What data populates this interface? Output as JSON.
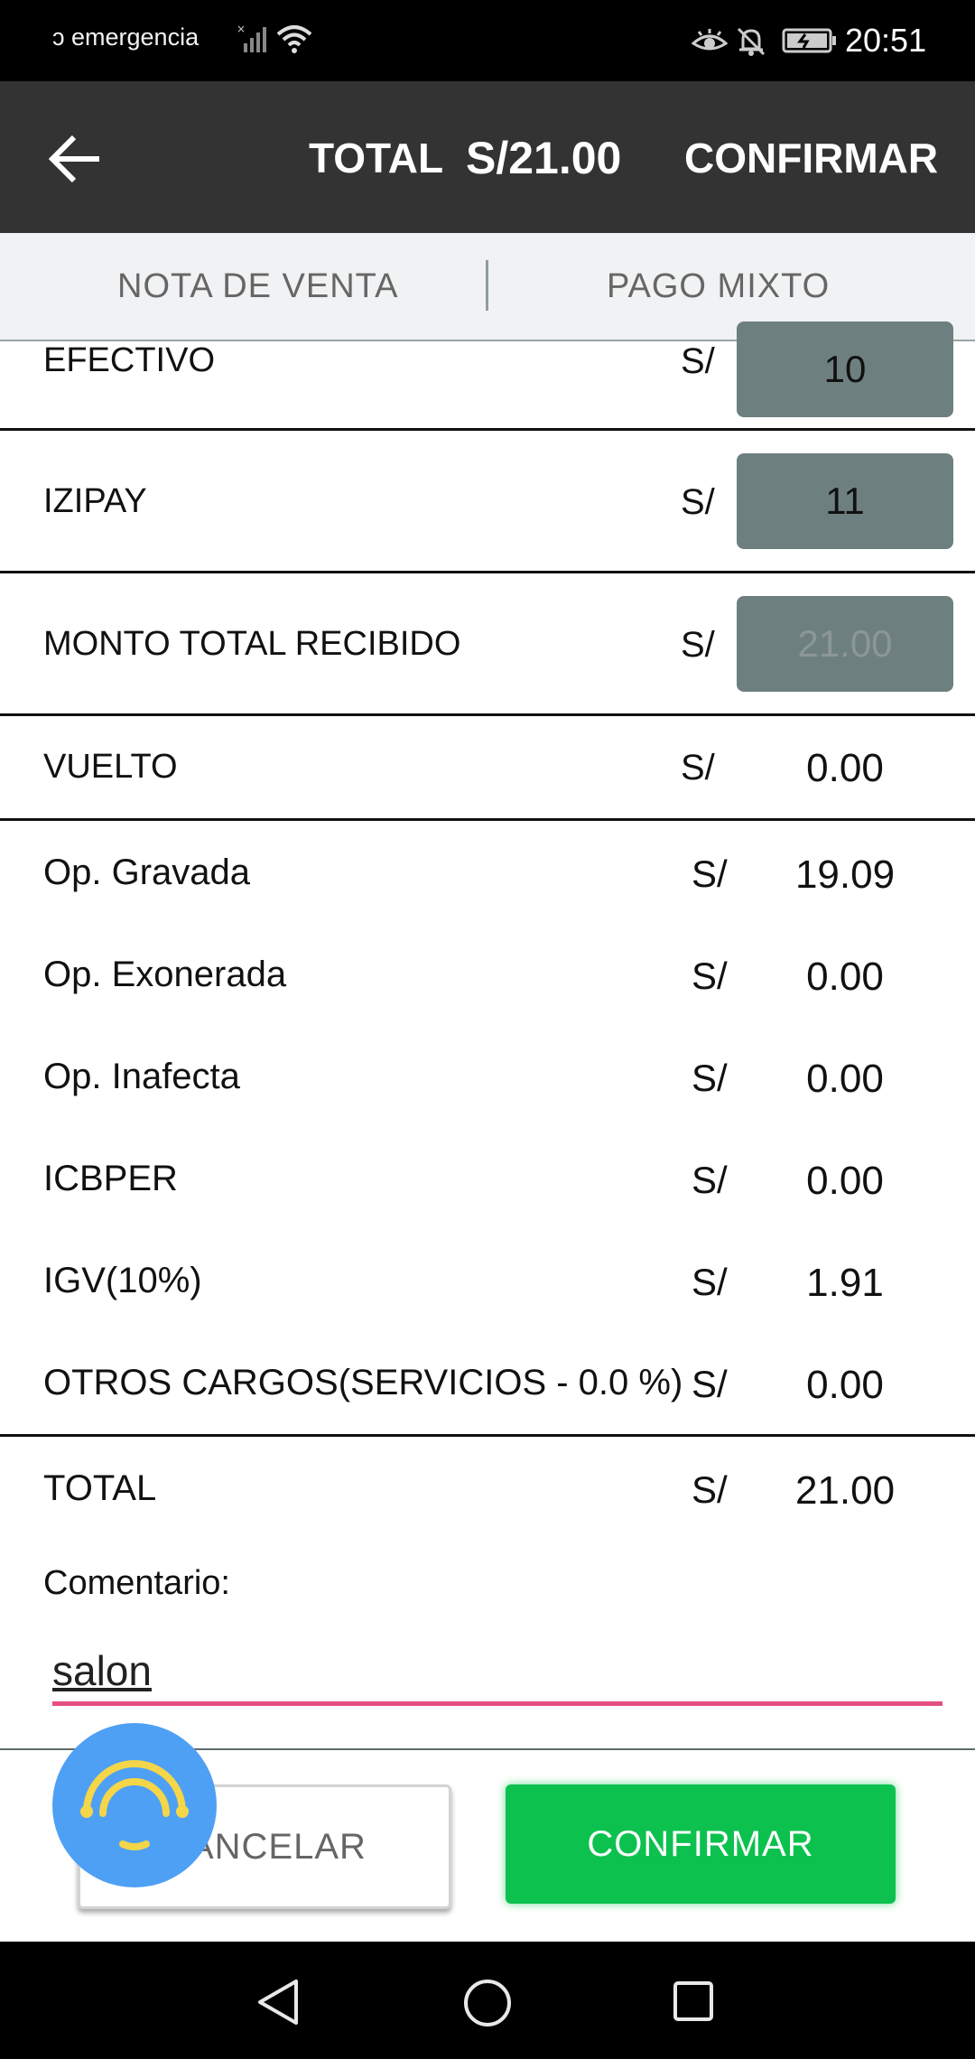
{
  "status_bar": {
    "carrier_text": "ɔ emergencia",
    "time": "20:51"
  },
  "app_bar": {
    "total_label": "TOTAL",
    "total_value": "S/21.00",
    "confirm_label": "CONFIRMAR"
  },
  "tabs": [
    {
      "label": "NOTA DE VENTA"
    },
    {
      "label": "PAGO MIXTO"
    }
  ],
  "payments": [
    {
      "label": "EFECTIVO",
      "currency": "S/",
      "value": "10"
    },
    {
      "label": "IZIPAY",
      "currency": "S/",
      "value": "11"
    },
    {
      "label": "MONTO TOTAL RECIBIDO",
      "currency": "S/",
      "value": "21.00"
    }
  ],
  "change": {
    "label": "VUELTO",
    "currency": "S/",
    "value": "0.00"
  },
  "summary": [
    {
      "label": "Op. Gravada",
      "currency": "S/",
      "value": "19.09"
    },
    {
      "label": "Op. Exonerada",
      "currency": "S/",
      "value": "0.00"
    },
    {
      "label": "Op. Inafecta",
      "currency": "S/",
      "value": "0.00"
    },
    {
      "label": "ICBPER",
      "currency": "S/",
      "value": "0.00"
    },
    {
      "label": "IGV(10%)",
      "currency": "S/",
      "value": "1.91"
    },
    {
      "label": "OTROS CARGOS(SERVICIOS - 0.0 %)",
      "currency": "S/",
      "value": "0.00"
    }
  ],
  "total": {
    "label": "TOTAL",
    "currency": "S/",
    "value": "21.00"
  },
  "comment": {
    "label": "Comentario:",
    "value": "salon"
  },
  "buttons": {
    "cancel_label": "CANCELAR",
    "confirm_label": "CONFIRMAR"
  },
  "colors": {
    "app_bar": "#333333",
    "confirm_green": "#0cc14e",
    "input_accent": "#e6507f",
    "amount_box": "#6e7f80",
    "fab_blue": "#4ea0f5"
  },
  "icons": [
    "back-arrow-icon",
    "eye-comfort-icon",
    "bell-off-icon",
    "battery-icon",
    "signal-icon",
    "wifi-icon",
    "assistant-icon",
    "nav-back-icon",
    "nav-home-icon",
    "nav-recent-icon"
  ]
}
